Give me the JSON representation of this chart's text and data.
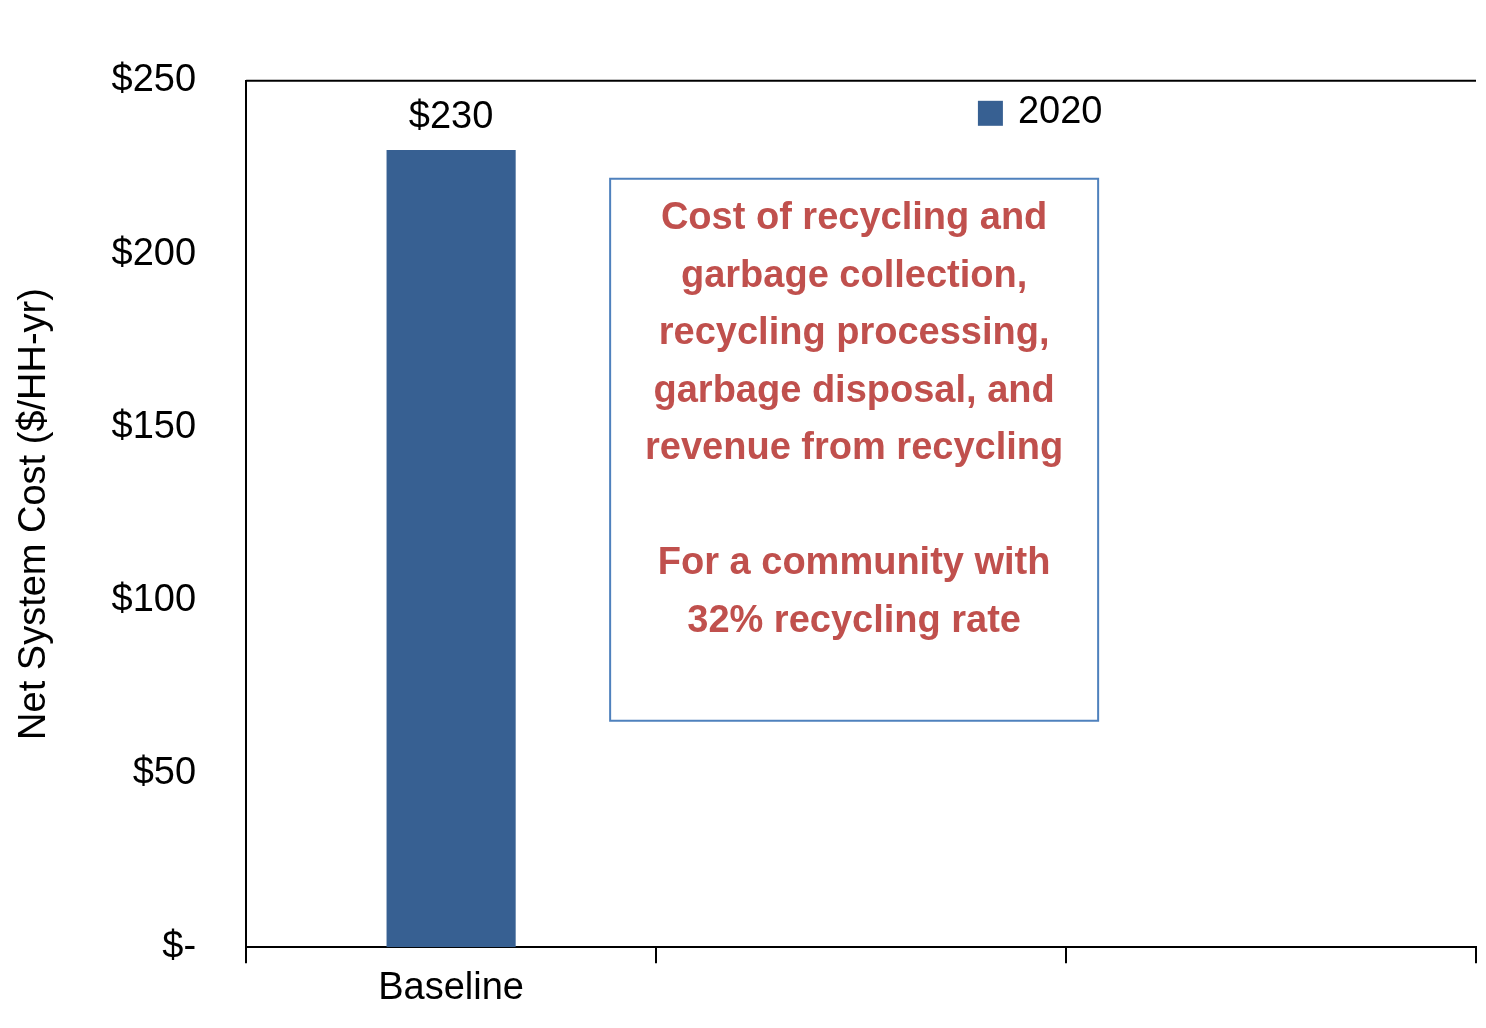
{
  "chart_data": {
    "type": "bar",
    "ylabel": "Net System Cost ($/HH-yr)",
    "categories": [
      "Baseline",
      null,
      null
    ],
    "series": [
      {
        "name": "2020",
        "color": "#376092",
        "values": [
          230,
          null,
          null
        ],
        "value_labels": [
          "$230",
          null,
          null
        ]
      }
    ],
    "ylim": [
      0,
      250
    ],
    "yticks": [
      {
        "value": 0,
        "label": "$-"
      },
      {
        "value": 50,
        "label": "$50"
      },
      {
        "value": 100,
        "label": "$100"
      },
      {
        "value": 150,
        "label": "$150"
      },
      {
        "value": 200,
        "label": "$200"
      },
      {
        "value": 250,
        "label": "$250"
      }
    ],
    "legend": "top right",
    "annotations": [
      "Cost of recycling and garbage collection, recycling processing, garbage disposal, and revenue from recycling\n\nFor a community with 32% recycling rate"
    ]
  }
}
